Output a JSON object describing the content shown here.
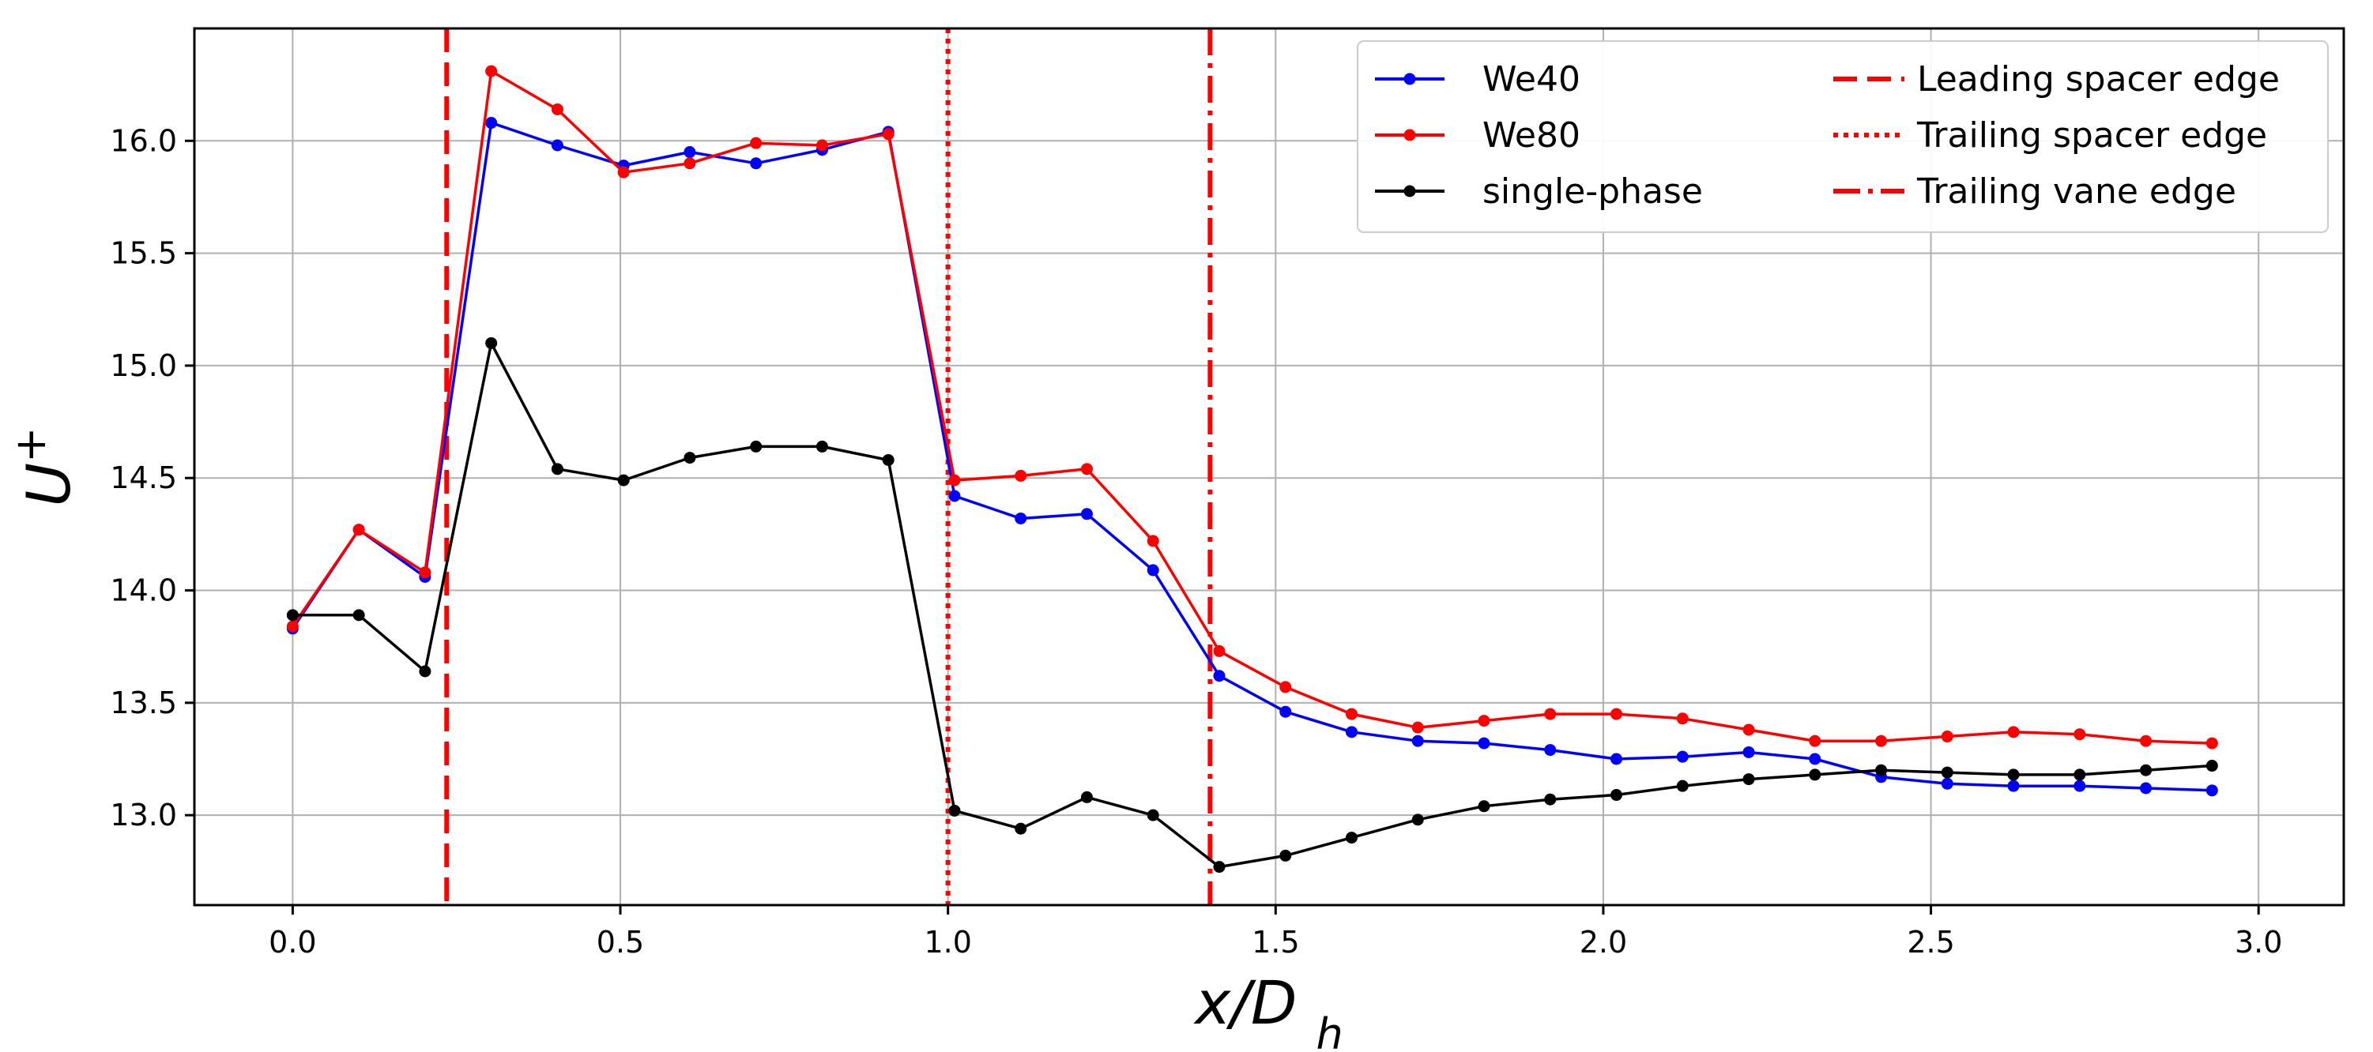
{
  "chart_data": {
    "type": "line",
    "title": "",
    "xlabel": "x/D_h",
    "ylabel": "U^+",
    "xlim": [
      -0.15,
      3.13
    ],
    "ylim": [
      12.6,
      16.5
    ],
    "grid": true,
    "legend_position": "top-right",
    "x_ticks": [
      0.0,
      0.5,
      1.0,
      1.5,
      2.0,
      2.5,
      3.0
    ],
    "x_tick_labels": [
      "0.0",
      "0.5",
      "1.0",
      "1.5",
      "2.0",
      "2.5",
      "3.0"
    ],
    "y_ticks": [
      13.0,
      13.5,
      14.0,
      14.5,
      15.0,
      15.5,
      16.0
    ],
    "y_tick_labels": [
      "13.0",
      "13.5",
      "14.0",
      "14.5",
      "15.0",
      "15.5",
      "16.0"
    ],
    "x": [
      0.0,
      0.101,
      0.202,
      0.303,
      0.404,
      0.505,
      0.606,
      0.707,
      0.808,
      0.909,
      1.01,
      1.111,
      1.212,
      1.313,
      1.414,
      1.515,
      1.616,
      1.717,
      1.818,
      1.919,
      2.02,
      2.121,
      2.222,
      2.323,
      2.424,
      2.525,
      2.626,
      2.727,
      2.828,
      2.929
    ],
    "series": [
      {
        "name": "We40",
        "color": "#0000ff",
        "marker": "circle",
        "values": [
          13.83,
          14.27,
          14.06,
          16.08,
          15.98,
          15.89,
          15.95,
          15.9,
          15.96,
          16.04,
          14.42,
          14.32,
          14.34,
          14.09,
          13.62,
          13.46,
          13.37,
          13.33,
          13.32,
          13.29,
          13.25,
          13.26,
          13.28,
          13.25,
          13.17,
          13.14,
          13.13,
          13.13,
          13.12,
          13.11
        ]
      },
      {
        "name": "We80",
        "color": "#ff0000",
        "marker": "circle",
        "values": [
          13.84,
          14.27,
          14.08,
          16.31,
          16.14,
          15.86,
          15.9,
          15.99,
          15.98,
          16.03,
          14.49,
          14.51,
          14.54,
          14.22,
          13.73,
          13.57,
          13.45,
          13.39,
          13.42,
          13.45,
          13.45,
          13.43,
          13.38,
          13.33,
          13.33,
          13.35,
          13.37,
          13.36,
          13.33,
          13.32
        ]
      },
      {
        "name": "single-phase",
        "color": "#000000",
        "marker": "circle",
        "values": [
          13.89,
          13.89,
          13.64,
          15.1,
          14.54,
          14.49,
          14.59,
          14.64,
          14.64,
          14.58,
          13.02,
          12.94,
          13.08,
          13.0,
          12.77,
          12.82,
          12.9,
          12.98,
          13.04,
          13.07,
          13.09,
          13.13,
          13.16,
          13.18,
          13.2,
          13.19,
          13.18,
          13.18,
          13.2,
          13.22
        ]
      }
    ],
    "vlines": [
      {
        "name": "Leading spacer edge",
        "x": 0.235,
        "style": "dashed",
        "color": "#ff0000"
      },
      {
        "name": "Trailing spacer edge",
        "x": 1.0,
        "style": "dotted",
        "color": "#ff0000"
      },
      {
        "name": "Trailing vane edge",
        "x": 1.4,
        "style": "dashdot",
        "color": "#ff0000"
      }
    ]
  }
}
